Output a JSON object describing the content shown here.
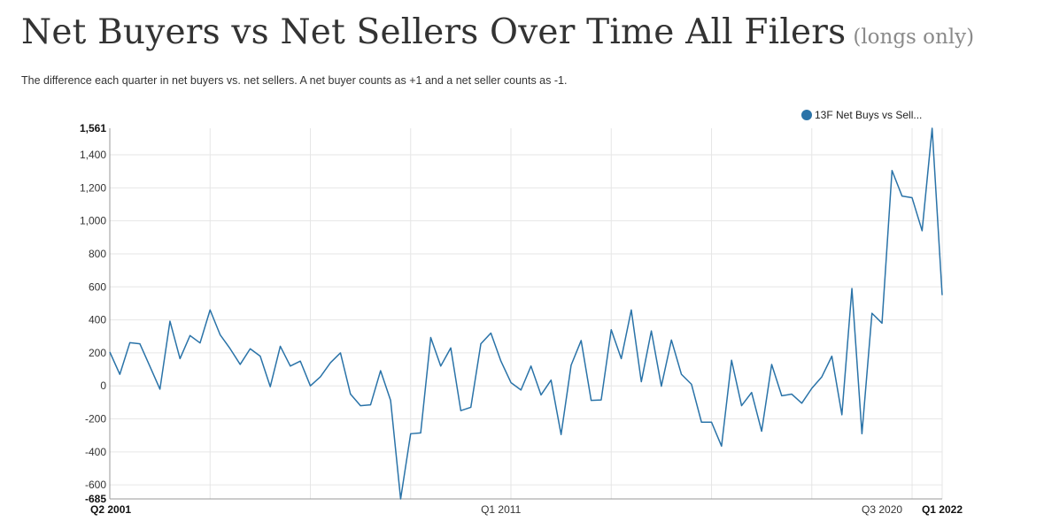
{
  "title": "Net Buyers vs Net Sellers Over Time All Filers",
  "title_suffix": "(longs only)",
  "subtitle": "The difference each quarter in net buyers vs. net sellers. A net buyer counts as +1 and a net seller counts as -1.",
  "colors": {
    "series": "#2a73a8",
    "grid": "#e6e6e6",
    "axis": "#999999"
  },
  "chart_data": {
    "type": "line",
    "title": "Net Buyers vs Net Sellers Over Time All Filers (longs only)",
    "xlabel": "",
    "ylabel": "",
    "ylim": [
      -685,
      1561
    ],
    "grid": true,
    "legend_position": "top-right",
    "y_ticks": [
      -600,
      -400,
      -200,
      0,
      200,
      400,
      600,
      800,
      1000,
      1200,
      1400
    ],
    "y_tick_labels": [
      "-600",
      "-400",
      "-200",
      "0",
      "200",
      "400",
      "600",
      "800",
      "1,000",
      "1,200",
      "1,400"
    ],
    "y_min_label": "-685",
    "y_max_label": "1,561",
    "x_tick_labels": [
      {
        "index": 0,
        "label": "Q2 2001",
        "bold": true
      },
      {
        "index": 39,
        "label": "Q1 2011",
        "bold": false
      },
      {
        "index": 77,
        "label": "Q3 2020",
        "bold": false
      },
      {
        "index": 83,
        "label": "Q1 2022",
        "bold": true
      }
    ],
    "x_start": "Q2 2001",
    "x_end": "Q1 2022",
    "series": [
      {
        "name": "13F Net Buys vs Sell...",
        "values": [
          205,
          70,
          262,
          255,
          118,
          -20,
          392,
          165,
          305,
          260,
          460,
          310,
          225,
          130,
          225,
          180,
          -5,
          240,
          120,
          150,
          0,
          55,
          140,
          200,
          -50,
          -120,
          -115,
          92,
          -88,
          -685,
          -290,
          -285,
          293,
          120,
          230,
          -150,
          -130,
          255,
          320,
          150,
          20,
          -25,
          120,
          -55,
          35,
          -295,
          125,
          275,
          -88,
          -85,
          340,
          165,
          460,
          25,
          333,
          -2,
          278,
          70,
          10,
          -220,
          -220,
          -365,
          155,
          -120,
          -40,
          -275,
          130,
          -60,
          -50,
          -105,
          -15,
          55,
          180,
          -175,
          590,
          -290,
          440,
          380,
          1305,
          1150,
          1140,
          940,
          1561,
          550
        ]
      }
    ]
  }
}
